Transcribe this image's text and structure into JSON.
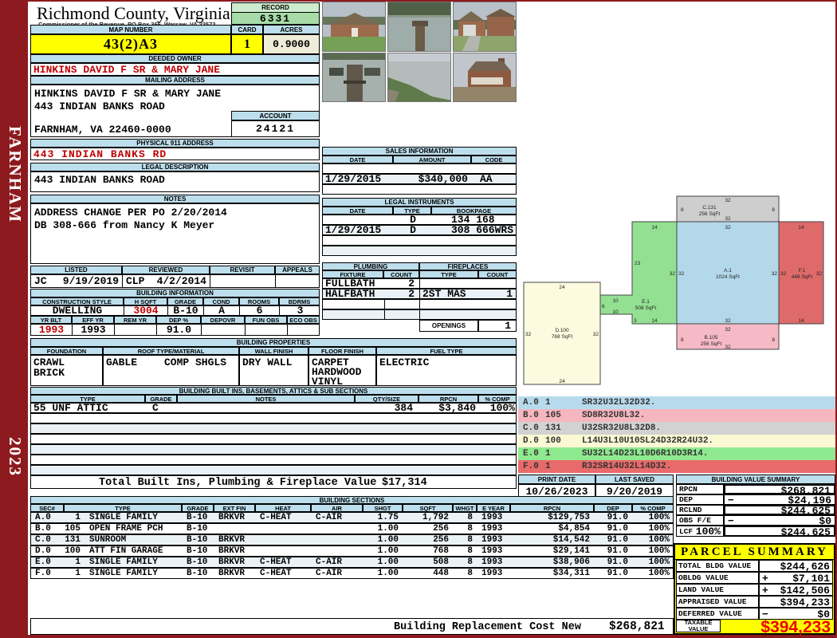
{
  "sidebar": {
    "district": "FARNHAM",
    "year": "2023"
  },
  "title_block": {
    "county": "Richmond County, Virginia",
    "commissioner": "Commissioner of the Revenue, PO Box 366, Warsaw, VA 22572",
    "record_label": "RECORD",
    "record_value": "6331",
    "map_number_label": "MAP NUMBER",
    "map_number": "43(2)A3",
    "card_label": "CARD",
    "card": "1",
    "acres_label": "ACRES",
    "acres": "0.9000"
  },
  "owner_block": {
    "deeded_owner_label": "DEEDED OWNER",
    "deeded_owner": "HINKINS DAVID F SR & MARY JANE",
    "mailing_address_label": "MAILING ADDRESS",
    "mailing_line1": "HINKINS DAVID F SR & MARY JANE",
    "mailing_line2": "443 INDIAN BANKS ROAD",
    "mailing_city": "FARNHAM, VA 22460-0000",
    "account_label": "ACCOUNT",
    "account": "24121"
  },
  "address_block": {
    "physical_label": "PHYSICAL 911 ADDRESS",
    "physical": "443 INDIAN BANKS RD",
    "legal_label": "LEGAL DESCRIPTION",
    "legal": "443 INDIAN BANKS ROAD",
    "notes_label": "NOTES",
    "notes_line1": "ADDRESS CHANGE PER PO 2/20/2014",
    "notes_line2": "DB 308-666 from Nancy K Meyer"
  },
  "review_block": {
    "listed_label": "LISTED",
    "listed_by": "JC",
    "listed_date": "9/19/2019",
    "reviewed_label": "REVIEWED",
    "reviewed_by": "CLP",
    "reviewed_date": "4/2/2014",
    "revisit_label": "REVISIT",
    "appeals_label": "APPEALS"
  },
  "building_info": {
    "title": "BUILDING INFORMATION",
    "labels": {
      "style": "CONSTRUCTION STYLE",
      "hsqft": "H SQFT",
      "grade": "GRADE",
      "cond": "COND",
      "rooms": "ROOMS",
      "bdrms": "BDRMS",
      "yr_blt": "YR BLT",
      "eff_yr": "EFF YR",
      "rem_yr": "REM YR",
      "dep": "DEP %",
      "depovr": "DEPOVR",
      "fun_obs": "FUN OBS",
      "eco_obs": "ECO OBS"
    },
    "style": "DWELLING",
    "hsqft": "3004",
    "grade": "B-10",
    "cond": "A",
    "rooms": "6",
    "bdrms": "3",
    "yr_blt": "1993",
    "eff_yr": "1993",
    "rem_yr": "",
    "dep": "91.0",
    "depovr": "",
    "fun_obs": "",
    "eco_obs": ""
  },
  "building_props": {
    "title": "BUILDING PROPERTIES",
    "labels": {
      "foundation": "FOUNDATION",
      "roof": "ROOF TYPE/MATERIAL",
      "wall": "WALL FINISH",
      "floor": "FLOOR FINISH",
      "fuel": "FUEL TYPE"
    },
    "foundation1": "CRAWL",
    "foundation2": "BRICK",
    "roof_type": "GABLE",
    "roof_material": "COMP SHGLS",
    "wall": "DRY WALL",
    "floor1": "CARPET",
    "floor2": "HARDWOOD",
    "floor3": "VINYL",
    "fuel": "ELECTRIC"
  },
  "built_ins": {
    "title": "BUILDING BUILT INS, BASEMENTS, ATTICS & SUB SECTIONS",
    "labels": {
      "type": "TYPE",
      "grade": "GRADE",
      "notes": "NOTES",
      "qty": "QTY/SIZE",
      "rpcn": "RPCN",
      "comp": "% COMP"
    },
    "row": {
      "type": "55 UNF ATTIC",
      "grade": "C",
      "notes": "",
      "qty": "384",
      "rpcn": "$3,840",
      "comp": "100%"
    },
    "total_label": "Total Built Ins, Plumbing & Fireplace Value",
    "total_value": "$17,314"
  },
  "sales": {
    "title": "SALES INFORMATION",
    "labels": {
      "date": "DATE",
      "amount": "AMOUNT",
      "code": "CODE"
    },
    "rows": [
      {
        "date": "",
        "amount": "",
        "code": ""
      },
      {
        "date": "1/29/2015",
        "amount": "$340,000",
        "code": "AA"
      },
      {
        "date": "",
        "amount": "",
        "code": ""
      }
    ]
  },
  "legal_instruments": {
    "title": "LEGAL INSTRUMENTS",
    "labels": {
      "date": "DATE",
      "type": "TYPE",
      "bookpage": "BOOKPAGE"
    },
    "rows": [
      {
        "date": "",
        "type": "D",
        "bookpage": "134 168"
      },
      {
        "date": "1/29/2015",
        "type": "D",
        "bookpage": "308 666WRS"
      },
      {
        "date": "",
        "type": "",
        "bookpage": ""
      },
      {
        "date": "",
        "type": "",
        "bookpage": ""
      }
    ]
  },
  "plumbing": {
    "title": "PLUMBING",
    "labels": {
      "fixture": "FIXTURE",
      "count": "COUNT"
    },
    "rows": [
      {
        "fixture": "FULLBATH",
        "count": "2"
      },
      {
        "fixture": "HALFBATH",
        "count": "2"
      },
      {
        "fixture": "",
        "count": ""
      },
      {
        "fixture": "",
        "count": ""
      }
    ]
  },
  "fireplaces": {
    "title": "FIREPLACES",
    "labels": {
      "type": "TYPE",
      "count": "COUNT"
    },
    "rows": [
      {
        "type": "",
        "count": ""
      },
      {
        "type": "2ST MAS",
        "count": "1"
      },
      {
        "type": "",
        "count": ""
      },
      {
        "type": "",
        "count": ""
      }
    ],
    "openings_label": "OPENINGS",
    "openings": "1"
  },
  "sketch": {
    "c_label": "C.131",
    "c_area": "256 SqFt",
    "c_top": "32",
    "c_left": "8",
    "c_right": "8",
    "c_bottom": "32",
    "a_label": "A.1",
    "a_area": "1024 SqFt",
    "a_top": "32",
    "a_left": "32",
    "a_right": "32",
    "a_bottom": "32",
    "e_right_dim": "32",
    "f_left_dim": "32",
    "b_label": "B.105",
    "b_area": "256 SqFt",
    "b_top": "32",
    "b_left": "8",
    "b_right": "8",
    "b_bottom": "32",
    "f_label": "F.1",
    "f_area": "448 SqFt",
    "f_top": "14",
    "f_right": "32",
    "f_bottom": "14",
    "e_label": "E.1",
    "e_area": "508 SqFt",
    "e_top": "14",
    "e_left": "23",
    "e_notch_top": "10",
    "e_notch_side": "6",
    "e_notch_bottom": "10",
    "e_lower": "3",
    "e_bottom": "14",
    "d_label": "D.100",
    "d_area": "768 SqFt",
    "d_top": "24",
    "d_left": "32",
    "d_right": "32",
    "d_bottom": "24"
  },
  "legend": {
    "rows": [
      {
        "code": "A.0",
        "qty": "1",
        "vector": "SR32U32L32D32."
      },
      {
        "code": "B.0",
        "qty": "105",
        "vector": "SD8R32U8L32."
      },
      {
        "code": "C.0",
        "qty": "131",
        "vector": "U32SR32U8L32D8."
      },
      {
        "code": "D.0",
        "qty": "100",
        "vector": "L14U3L10U10SL24D32R24U32."
      },
      {
        "code": "E.0",
        "qty": "1",
        "vector": "SU32L14D23L10D6R10D3R14."
      },
      {
        "code": "F.0",
        "qty": "1",
        "vector": "R32SR14U32L14D32."
      }
    ],
    "colors": [
      "#B7DBEC",
      "#F6B6BF",
      "#D2D2D2",
      "#FAF9D3",
      "#8FE98F",
      "#E96A6A"
    ]
  },
  "dates": {
    "print_label": "PRINT DATE",
    "print": "10/26/2023",
    "saved_label": "LAST SAVED",
    "saved": "9/20/2019"
  },
  "bvs": {
    "title": "BUILDING VALUE SUMMARY",
    "rows": [
      {
        "label": "RPCN",
        "extra": "",
        "op": "",
        "value": "$268,821"
      },
      {
        "label": "DEP",
        "extra": "",
        "op": "−",
        "value": "$24,196"
      },
      {
        "label": "RCLND",
        "extra": "",
        "op": "",
        "value": "$244,625"
      },
      {
        "label": "OBS F/E",
        "extra": "",
        "op": "−",
        "value": "$0"
      },
      {
        "label": "LCF",
        "extra": "100%",
        "op": "",
        "value": "$244,625"
      }
    ]
  },
  "parcel": {
    "title": "PARCEL SUMMARY",
    "rows": [
      {
        "label": "TOTAL BLDG VALUE",
        "op": "",
        "value": "$244,626"
      },
      {
        "label": "OBLDG VALUE",
        "op": "+",
        "value": "$7,101"
      },
      {
        "label": "LAND VALUE",
        "op": "+",
        "value": "$142,506"
      },
      {
        "label": "APPRAISED VALUE",
        "op": "",
        "value": "$394,233"
      },
      {
        "label": "DEFERRED VALUE",
        "op": "−",
        "value": "$0"
      }
    ],
    "taxable_label1": "TAXABLE",
    "taxable_label2": "VALUE",
    "taxable_value": "$394,233",
    "accent_color": "#FFFF00",
    "taxable_color": "#EE0000"
  },
  "sections": {
    "title": "BUILDING SECTIONS",
    "labels": {
      "sec": "SEC#",
      "type": "TYPE",
      "grade": "GRADE",
      "ext": "EXT FIN",
      "heat": "HEAT",
      "air": "AIR",
      "shgt": "SHGT",
      "sqft": "SQFT",
      "whgt": "WHGT",
      "eyear": "E YEAR",
      "rpcn": "RPCN",
      "dep": "DEP",
      "comp": "% COMP"
    },
    "rows": [
      {
        "sec": "A.0",
        "qty": "1",
        "type": "SINGLE FAMILY",
        "grade": "B-10",
        "ext": "BRKVR",
        "heat": "C-HEAT",
        "air": "C-AIR",
        "shgt": "1.75",
        "sqft": "1,792",
        "whgt": "8",
        "eyear": "1993",
        "rpcn": "$129,753",
        "dep": "91.0",
        "comp": "100%"
      },
      {
        "sec": "B.0",
        "qty": "105",
        "type": "OPEN FRAME PCH",
        "grade": "B-10",
        "ext": "",
        "heat": "",
        "air": "",
        "shgt": "1.00",
        "sqft": "256",
        "whgt": "8",
        "eyear": "1993",
        "rpcn": "$4,854",
        "dep": "91.0",
        "comp": "100%"
      },
      {
        "sec": "C.0",
        "qty": "131",
        "type": "SUNROOM",
        "grade": "B-10",
        "ext": "BRKVR",
        "heat": "",
        "air": "",
        "shgt": "1.00",
        "sqft": "256",
        "whgt": "8",
        "eyear": "1993",
        "rpcn": "$14,542",
        "dep": "91.0",
        "comp": "100%"
      },
      {
        "sec": "D.0",
        "qty": "100",
        "type": "ATT FIN GARAGE",
        "grade": "B-10",
        "ext": "BRKVR",
        "heat": "",
        "air": "",
        "shgt": "1.00",
        "sqft": "768",
        "whgt": "8",
        "eyear": "1993",
        "rpcn": "$29,141",
        "dep": "91.0",
        "comp": "100%"
      },
      {
        "sec": "E.0",
        "qty": "1",
        "type": "SINGLE FAMILY",
        "grade": "B-10",
        "ext": "BRKVR",
        "heat": "C-HEAT",
        "air": "C-AIR",
        "shgt": "1.00",
        "sqft": "508",
        "whgt": "8",
        "eyear": "1993",
        "rpcn": "$38,906",
        "dep": "91.0",
        "comp": "100%"
      },
      {
        "sec": "F.0",
        "qty": "1",
        "type": "SINGLE FAMILY",
        "grade": "B-10",
        "ext": "BRKVR",
        "heat": "C-HEAT",
        "air": "C-AIR",
        "shgt": "1.00",
        "sqft": "448",
        "whgt": "8",
        "eyear": "1993",
        "rpcn": "$34,311",
        "dep": "91.0",
        "comp": "100%"
      }
    ]
  },
  "footer": {
    "label": "Building Replacement Cost New",
    "value": "$268,821"
  },
  "photos": [
    "front-elevation",
    "river-view",
    "garage-elevation",
    "dock-view",
    "shoreline-view",
    "rear-elevation"
  ]
}
